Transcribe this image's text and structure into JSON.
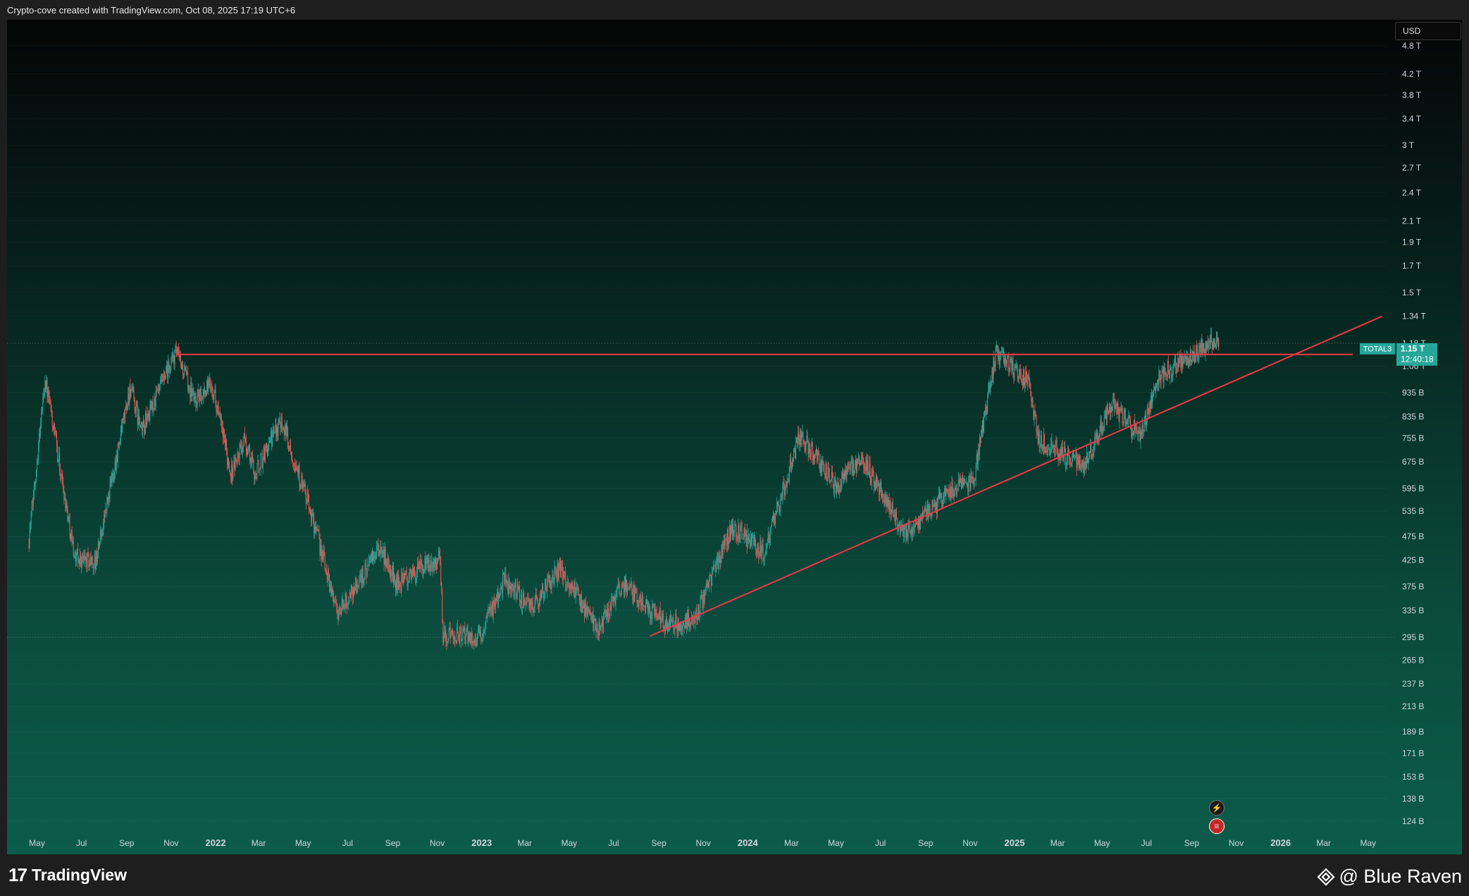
{
  "header": {
    "attribution": "Crypto-cove created with TradingView.com, Oct 08, 2025 17:19 UTC+6"
  },
  "footer": {
    "logo_text": "TradingView",
    "watermark": "@ Blue Raven"
  },
  "price_axis": {
    "currency": "USD"
  },
  "price_label": {
    "symbol": "TOTAL3",
    "price": "1.15 T",
    "countdown": "12:40:18",
    "color": "#26a69a"
  },
  "colors": {
    "up_candle": "#26a69a",
    "down_candle": "#ef5350",
    "trendline": "#f23645",
    "axis_text": "#d1d4dc"
  },
  "icons": {
    "event_1": "lightning-icon",
    "event_2": "flag-icon"
  },
  "chart_data": {
    "type": "candlestick",
    "symbol": "TOTAL3",
    "interval": "1D",
    "scale": "log",
    "currency": "USD",
    "y_ticks": [
      "4.8 T",
      "4.2 T",
      "3.8 T",
      "3.4 T",
      "3 T",
      "2.7 T",
      "2.4 T",
      "2.1 T",
      "1.9 T",
      "1.7 T",
      "1.5 T",
      "1.34 T",
      "1.18 T",
      "1.06 T",
      "935 B",
      "835 B",
      "755 B",
      "675 B",
      "595 B",
      "535 B",
      "475 B",
      "425 B",
      "375 B",
      "335 B",
      "295 B",
      "265 B",
      "237 B",
      "213 B",
      "189 B",
      "171 B",
      "153 B",
      "138 B",
      "124 B"
    ],
    "y_tick_values": [
      4800,
      4200,
      3800,
      3400,
      3000,
      2700,
      2400,
      2100,
      1900,
      1700,
      1500,
      1340,
      1180,
      1060,
      935,
      835,
      755,
      675,
      595,
      535,
      475,
      425,
      375,
      335,
      295,
      265,
      237,
      213,
      189,
      171,
      153,
      138,
      124
    ],
    "y_unit": "B",
    "x_ticks": [
      "May",
      "Jul",
      "Sep",
      "Nov",
      "2022",
      "Mar",
      "May",
      "Jul",
      "Sep",
      "Nov",
      "2023",
      "Mar",
      "May",
      "Jul",
      "Sep",
      "Nov",
      "2024",
      "Mar",
      "May",
      "Jul",
      "Sep",
      "Nov",
      "2025",
      "Mar",
      "May",
      "Jul",
      "Sep",
      "Nov",
      "2026",
      "Mar",
      "May"
    ],
    "x_tick_dates": [
      "2021-05-01",
      "2021-07-01",
      "2021-09-01",
      "2021-11-01",
      "2022-01-01",
      "2022-03-01",
      "2022-05-01",
      "2022-07-01",
      "2022-09-01",
      "2022-11-01",
      "2023-01-01",
      "2023-03-01",
      "2023-05-01",
      "2023-07-01",
      "2023-09-01",
      "2023-11-01",
      "2024-01-01",
      "2024-03-01",
      "2024-05-01",
      "2024-07-01",
      "2024-09-01",
      "2024-11-01",
      "2025-01-01",
      "2025-03-01",
      "2025-05-01",
      "2025-07-01",
      "2025-09-01",
      "2025-11-01",
      "2026-01-01",
      "2026-03-01",
      "2026-05-01"
    ],
    "price_path": [
      {
        "date": "2021-04-20",
        "value": 470
      },
      {
        "date": "2021-05-12",
        "value": 1000
      },
      {
        "date": "2021-06-22",
        "value": 430
      },
      {
        "date": "2021-07-20",
        "value": 420
      },
      {
        "date": "2021-09-06",
        "value": 960
      },
      {
        "date": "2021-09-21",
        "value": 780
      },
      {
        "date": "2021-11-08",
        "value": 1130
      },
      {
        "date": "2021-12-04",
        "value": 900
      },
      {
        "date": "2021-12-27",
        "value": 980
      },
      {
        "date": "2022-01-22",
        "value": 640
      },
      {
        "date": "2022-02-10",
        "value": 750
      },
      {
        "date": "2022-02-24",
        "value": 640
      },
      {
        "date": "2022-04-01",
        "value": 830
      },
      {
        "date": "2022-05-12",
        "value": 530
      },
      {
        "date": "2022-06-18",
        "value": 330
      },
      {
        "date": "2022-08-14",
        "value": 450
      },
      {
        "date": "2022-09-07",
        "value": 380
      },
      {
        "date": "2022-11-05",
        "value": 430
      },
      {
        "date": "2022-11-09",
        "value": 300
      },
      {
        "date": "2022-12-30",
        "value": 295
      },
      {
        "date": "2023-01-31",
        "value": 385
      },
      {
        "date": "2023-03-10",
        "value": 340
      },
      {
        "date": "2023-04-18",
        "value": 410
      },
      {
        "date": "2023-06-10",
        "value": 305
      },
      {
        "date": "2023-07-14",
        "value": 380
      },
      {
        "date": "2023-09-11",
        "value": 315
      },
      {
        "date": "2023-10-20",
        "value": 320
      },
      {
        "date": "2023-12-10",
        "value": 500
      },
      {
        "date": "2024-01-23",
        "value": 440
      },
      {
        "date": "2024-03-13",
        "value": 770
      },
      {
        "date": "2024-05-01",
        "value": 600
      },
      {
        "date": "2024-06-05",
        "value": 690
      },
      {
        "date": "2024-08-05",
        "value": 480
      },
      {
        "date": "2024-09-30",
        "value": 580
      },
      {
        "date": "2024-11-06",
        "value": 620
      },
      {
        "date": "2024-12-06",
        "value": 1130
      },
      {
        "date": "2025-01-20",
        "value": 980
      },
      {
        "date": "2025-02-03",
        "value": 750
      },
      {
        "date": "2025-04-07",
        "value": 660
      },
      {
        "date": "2025-05-14",
        "value": 890
      },
      {
        "date": "2025-06-22",
        "value": 760
      },
      {
        "date": "2025-07-18",
        "value": 1010
      },
      {
        "date": "2025-08-23",
        "value": 1100
      },
      {
        "date": "2025-10-06",
        "value": 1200
      },
      {
        "date": "2025-10-08",
        "value": 1150
      }
    ],
    "annotations": [
      {
        "type": "horizontal_resistance",
        "value": 1120,
        "from": "2021-11-08",
        "to": "2026-04-10"
      },
      {
        "type": "ascending_trendline",
        "from": {
          "date": "2023-08-20",
          "value": 297
        },
        "to": {
          "date": "2026-05-20",
          "value": 1340
        }
      },
      {
        "type": "dotted_level",
        "value": 1180
      },
      {
        "type": "dotted_level",
        "value": 295
      }
    ],
    "last_price": "1.15 T"
  }
}
